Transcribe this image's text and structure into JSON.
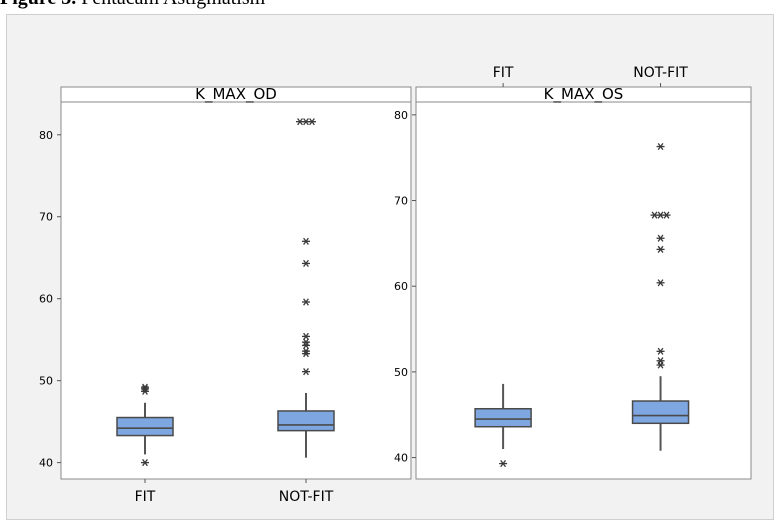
{
  "caption": {
    "prefix": "Figure 3.",
    "text": "Pentacam Astigmatism"
  },
  "chart_data": [
    {
      "type": "boxplot",
      "title": "K_MAX_OD",
      "categories": [
        "FIT",
        "NOT-FIT"
      ],
      "category_axis_position": "bottom",
      "ylim": [
        38,
        84
      ],
      "yticks": [
        40,
        50,
        60,
        70,
        80
      ],
      "grid": false,
      "boxes": [
        {
          "category": "FIT",
          "min": 41.0,
          "q1": 43.3,
          "median": 44.2,
          "q3": 45.5,
          "max": 47.3,
          "outliers": [
            40.0,
            48.7,
            49.0,
            49.2
          ]
        },
        {
          "category": "NOT-FIT",
          "min": 40.6,
          "q1": 43.9,
          "median": 44.6,
          "q3": 46.3,
          "max": 48.5,
          "outliers": [
            51.1,
            53.3,
            53.6,
            54.3,
            54.7,
            55.4,
            59.6,
            64.3,
            67.0,
            81.6,
            81.6,
            81.6
          ]
        }
      ]
    },
    {
      "type": "boxplot",
      "title": "K_MAX_OS",
      "categories": [
        "FIT",
        "NOT-FIT"
      ],
      "category_axis_position": "top",
      "ylim": [
        37.5,
        81.5
      ],
      "yticks": [
        40,
        50,
        60,
        70,
        80
      ],
      "grid": false,
      "boxes": [
        {
          "category": "FIT",
          "min": 41.0,
          "q1": 43.6,
          "median": 44.5,
          "q3": 45.7,
          "max": 48.6,
          "outliers": [
            39.3
          ]
        },
        {
          "category": "NOT-FIT",
          "min": 40.8,
          "q1": 44.0,
          "median": 44.9,
          "q3": 46.6,
          "max": 49.5,
          "outliers": [
            50.8,
            51.3,
            52.4,
            60.4,
            64.3,
            65.6,
            68.3,
            68.3,
            68.3,
            76.3
          ]
        }
      ]
    }
  ],
  "colors": {
    "box_fill": "#7ea6e0",
    "box_stroke": "#4a4a4a",
    "whisker": "#555555",
    "outlier": "#3a3a3a",
    "panel_bg": "#ffffff",
    "figure_bg": "#f2f2f2"
  }
}
